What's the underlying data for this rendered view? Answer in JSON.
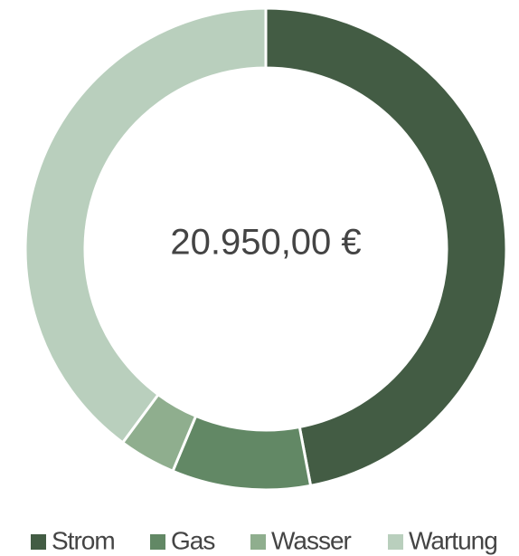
{
  "chart_data": {
    "type": "donut",
    "center_label": "20.950,00 €",
    "categories": [
      "Strom",
      "Gas",
      "Wasser",
      "Wartung"
    ],
    "values": [
      9850,
      1950,
      800,
      8350
    ],
    "colors": [
      "#435c44",
      "#628865",
      "#8fae8e",
      "#b9cfbd"
    ],
    "legend": "bottom"
  }
}
